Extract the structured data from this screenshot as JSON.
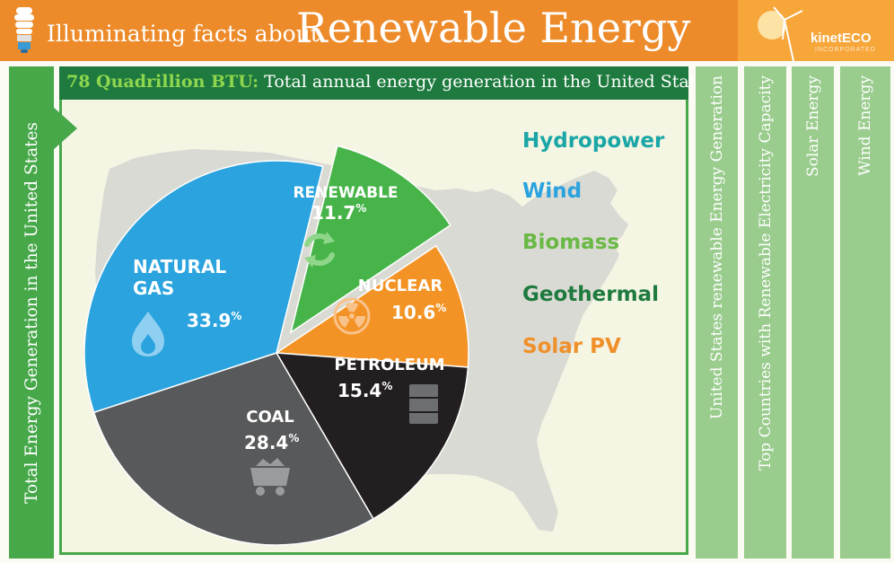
{
  "header": {
    "title_prefix": "Illuminating facts about",
    "title_main": "Renewable Energy",
    "logo_name": "kinetECO",
    "logo_sub": "INCORPORATED"
  },
  "left_tab": {
    "label": "Total Energy Generation in the United States"
  },
  "panel": {
    "headline_highlight": "78 Quadrillion BTU:",
    "headline_rest": "Total annual energy generation in the United States"
  },
  "legend": [
    {
      "label": "Hydropower",
      "color": "#1aa6a6"
    },
    {
      "label": "Wind",
      "color": "#2aa3de"
    },
    {
      "label": "Biomass",
      "color": "#6ab945"
    },
    {
      "label": "Geothermal",
      "color": "#1e7a3e"
    },
    {
      "label": "Solar PV",
      "color": "#f0902a"
    }
  ],
  "right_tabs": [
    {
      "label": "United States renewable Energy Generation"
    },
    {
      "label": "Top Countries with Renewable Electricity Capacity"
    },
    {
      "label": "Solar Energy"
    },
    {
      "label": "Wind Energy"
    }
  ],
  "chart_data": {
    "type": "pie",
    "title": "",
    "slices": [
      {
        "label": "RENEWABLE",
        "value": 11.7,
        "display": "11.7",
        "suffix": "%",
        "color": "#47b449",
        "exploded": true,
        "icon": "recycle-icon"
      },
      {
        "label": "NUCLEAR",
        "value": 10.6,
        "display": "10.6",
        "suffix": "%",
        "color": "#f39325",
        "exploded": false,
        "icon": "radiation-icon"
      },
      {
        "label": "PETROLEUM",
        "value": 15.4,
        "display": "15.4",
        "suffix": "%",
        "color": "#231f20",
        "exploded": false,
        "icon": "barrel-icon"
      },
      {
        "label": "COAL",
        "value": 28.4,
        "display": "28.4",
        "suffix": "%",
        "color": "#58595b",
        "exploded": false,
        "icon": "coal-cart-icon"
      },
      {
        "label": "NATURAL GAS",
        "value": 33.9,
        "display": "33.9",
        "suffix": "%",
        "color": "#2aa3de",
        "exploded": false,
        "icon": "flame-icon"
      }
    ]
  }
}
